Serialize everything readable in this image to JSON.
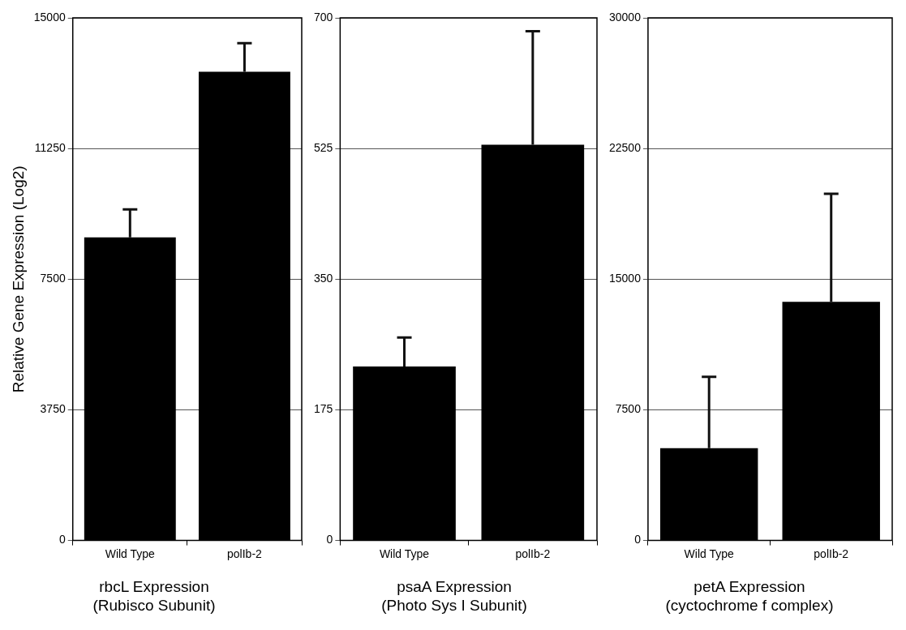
{
  "chart_data": [
    {
      "type": "bar",
      "title": "rbcL Expression\n(Rubisco Subunit)",
      "ylabel": "Relative Gene Expression (Log2)",
      "categories": [
        "Wild Type",
        "polIb-2"
      ],
      "values": [
        8700,
        13450
      ],
      "errors": [
        [
          8700,
          9500
        ],
        [
          13450,
          14270
        ]
      ],
      "color": "#000000",
      "ylim": [
        0,
        15000
      ],
      "yticks": [
        0,
        3750,
        7500,
        11250,
        15000
      ],
      "grid": "y"
    },
    {
      "type": "bar",
      "title": "psaA Expression\n(Photo Sys I Subunit)",
      "categories": [
        "Wild Type",
        "polIb-2"
      ],
      "values": [
        233,
        530
      ],
      "errors": [
        [
          233,
          272
        ],
        [
          530,
          682
        ]
      ],
      "color": "#000000",
      "ylim": [
        0,
        700
      ],
      "yticks": [
        0,
        175,
        350,
        525,
        700
      ],
      "grid": "y"
    },
    {
      "type": "bar",
      "title": "petA Expression\n(cyctochrome f complex)",
      "categories": [
        "Wild Type",
        "polIb-2"
      ],
      "values": [
        5300,
        13700
      ],
      "errors": [
        [
          5300,
          9400
        ],
        [
          13700,
          19900
        ]
      ],
      "color": "#000000",
      "ylim": [
        0,
        30000
      ],
      "yticks": [
        0,
        7500,
        15000,
        22500,
        30000
      ],
      "grid": "y"
    }
  ]
}
